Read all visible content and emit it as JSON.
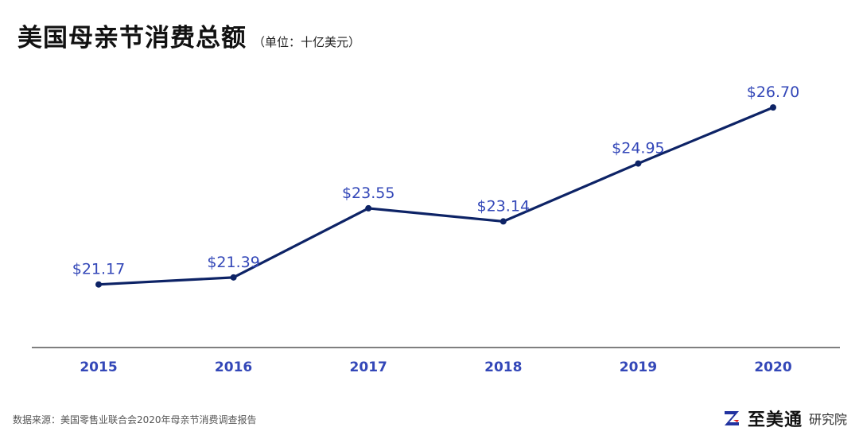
{
  "header": {
    "title": "美国母亲节消费总额",
    "unit_note": "（单位：十亿美元）"
  },
  "footer": {
    "source": "数据来源：美国零售业联合会2020年母亲节消费调查报告",
    "brand_name": "至美通",
    "brand_sub": "研究院"
  },
  "colors": {
    "line": "#0d2366",
    "label": "#3347b8",
    "axis": "#333333"
  },
  "chart_data": {
    "type": "line",
    "title": "美国母亲节消费总额",
    "subtitle": "（单位：十亿美元）",
    "categories": [
      "2015",
      "2016",
      "2017",
      "2018",
      "2019",
      "2020"
    ],
    "values": [
      21.17,
      21.39,
      23.55,
      23.14,
      24.95,
      26.7
    ],
    "data_labels": [
      "$21.17",
      "$21.39",
      "$23.55",
      "$23.14",
      "$24.95",
      "$26.70"
    ],
    "xlabel": "",
    "ylabel": "",
    "ylim": [
      19.2,
      27.2
    ],
    "grid": false,
    "legend": "none"
  }
}
